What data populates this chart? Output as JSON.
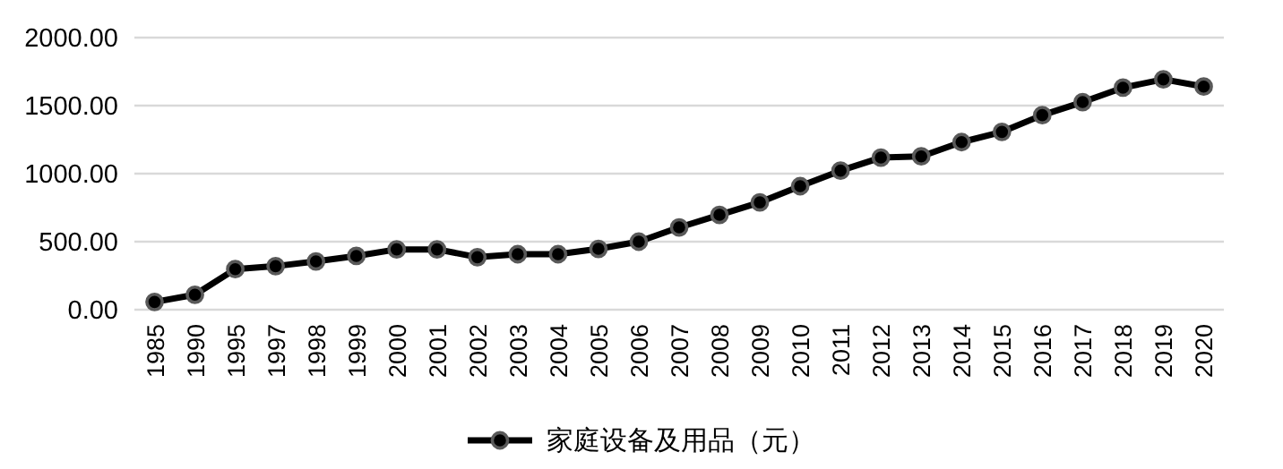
{
  "chart_data": {
    "type": "line",
    "categories": [
      "1985",
      "1990",
      "1995",
      "1997",
      "1998",
      "1999",
      "2000",
      "2001",
      "2002",
      "2003",
      "2004",
      "2005",
      "2006",
      "2007",
      "2008",
      "2009",
      "2010",
      "2011",
      "2012",
      "2013",
      "2014",
      "2015",
      "2016",
      "2017",
      "2018",
      "2019",
      "2020"
    ],
    "series": [
      {
        "name": "家庭设备及用品（元）",
        "color": "#000000",
        "values": [
          57,
          110,
          298,
          320,
          355,
          395,
          443,
          443,
          386,
          408,
          408,
          447,
          500,
          605,
          697,
          789,
          908,
          1022,
          1118,
          1127,
          1232,
          1307,
          1430,
          1526,
          1632,
          1693,
          1640
        ]
      }
    ],
    "ylim": [
      0,
      2000
    ],
    "yticks": [
      {
        "value": 0,
        "label": "0.00"
      },
      {
        "value": 500,
        "label": "500.00"
      },
      {
        "value": 1000,
        "label": "1000.00"
      },
      {
        "value": 1500,
        "label": "1500.00"
      },
      {
        "value": 2000,
        "label": "2000.00"
      }
    ],
    "grid": "y",
    "legend": "bottom",
    "marker": "circle",
    "line_style": "solid"
  }
}
